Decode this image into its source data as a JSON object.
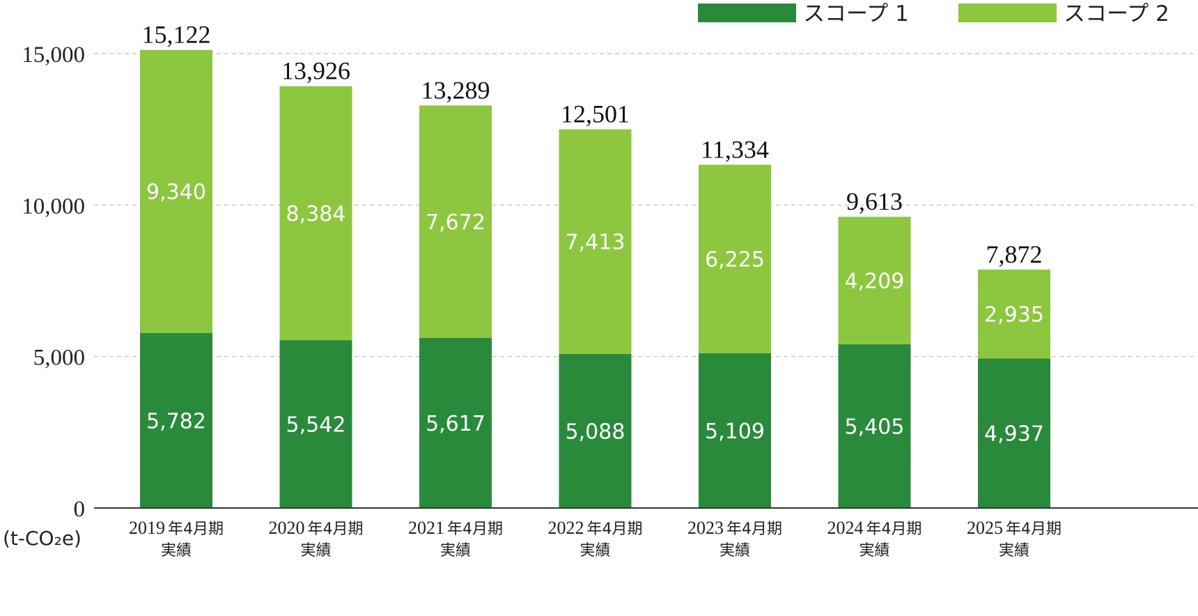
{
  "chart_data": {
    "type": "bar",
    "stacked": true,
    "categories": [
      {
        "year": "2019",
        "suffix": "年4月期",
        "line2": "実績"
      },
      {
        "year": "2020",
        "suffix": "年4月期",
        "line2": "実績"
      },
      {
        "year": "2021",
        "suffix": "年4月期",
        "line2": "実績"
      },
      {
        "year": "2022",
        "suffix": "年4月期",
        "line2": "実績"
      },
      {
        "year": "2023",
        "suffix": "年4月期",
        "line2": "実績"
      },
      {
        "year": "2024",
        "suffix": "年4月期",
        "line2": "実績"
      },
      {
        "year": "2025",
        "suffix": "年4月期",
        "line2": "実績"
      }
    ],
    "series": [
      {
        "name": "スコープ 1",
        "color": "#2a8a3c",
        "values": [
          5782,
          5542,
          5617,
          5088,
          5109,
          5405,
          4937
        ]
      },
      {
        "name": "スコープ 2",
        "color": "#8dc63f",
        "values": [
          9340,
          8384,
          7672,
          7413,
          6225,
          4209,
          2935
        ]
      }
    ],
    "totals": [
      15122,
      13926,
      13289,
      12501,
      11334,
      9613,
      7872
    ],
    "ylim": [
      0,
      15000
    ],
    "yticks": [
      0,
      5000,
      10000,
      15000
    ],
    "ytick_labels": [
      "0",
      "5,000",
      "10,000",
      "15,000"
    ],
    "unit_label": "(t-CO₂e)",
    "grid": true,
    "legend_position": "top-right"
  }
}
